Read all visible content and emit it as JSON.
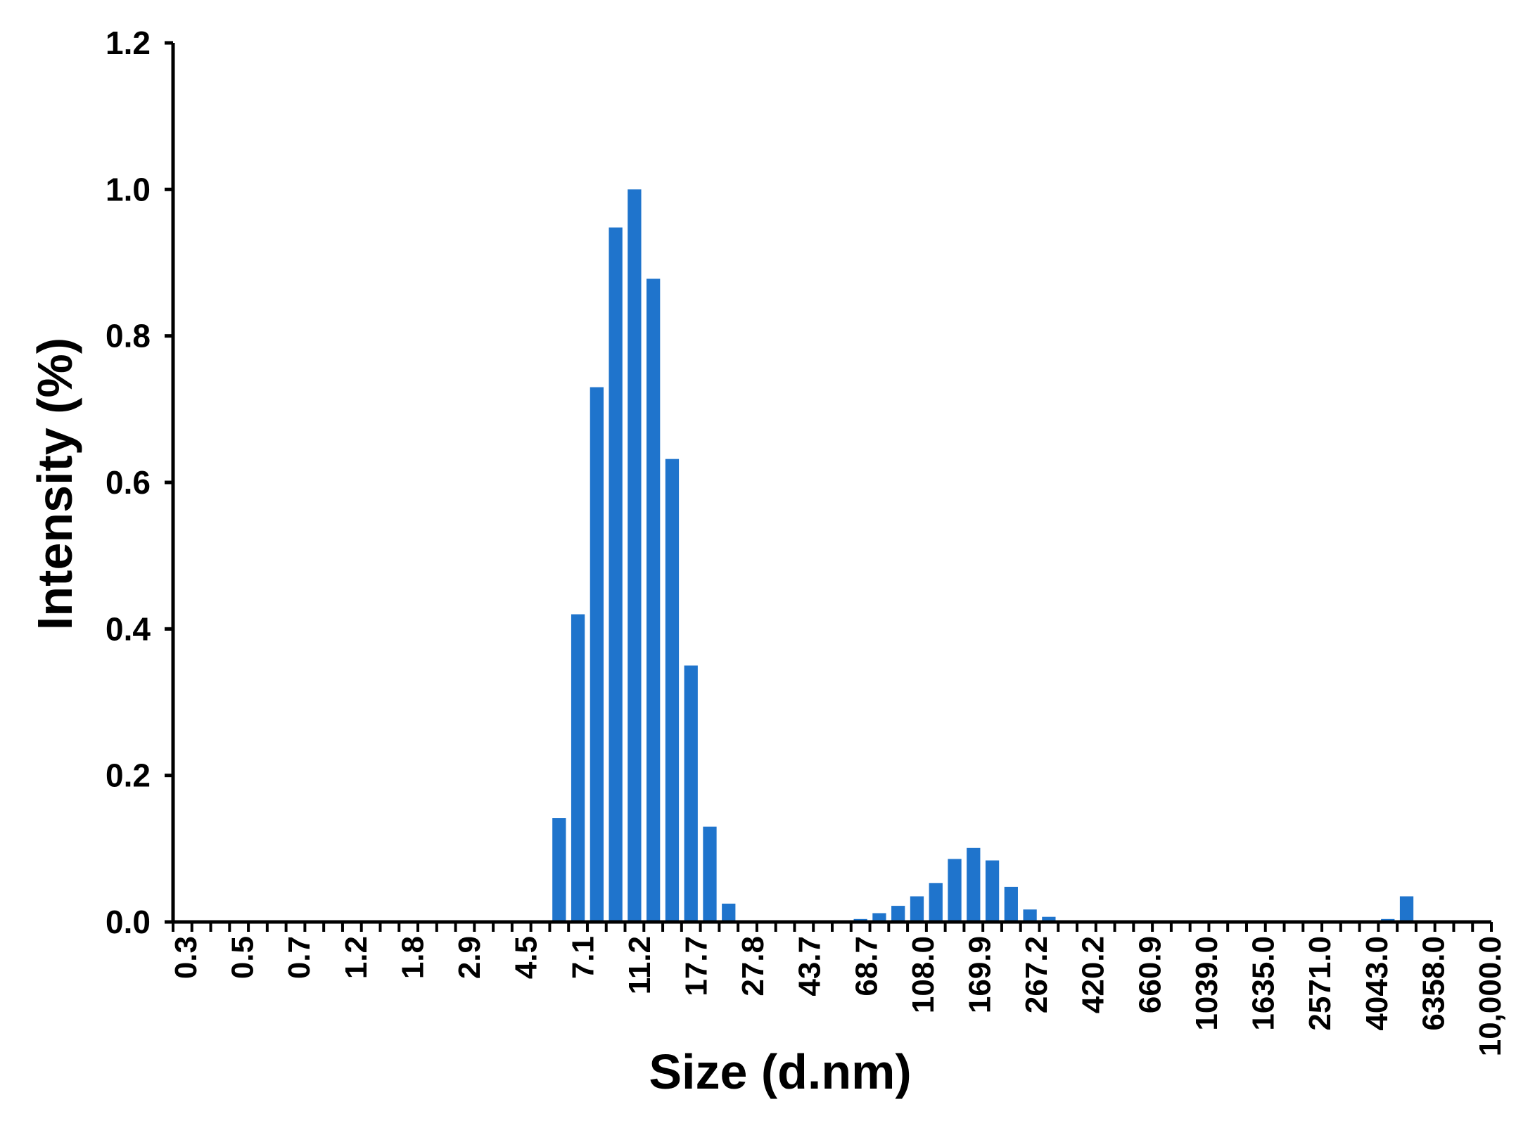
{
  "chart_data": {
    "type": "bar",
    "xlabel": "Size (d.nm)",
    "ylabel": "Intensity (%)",
    "ylim": [
      0,
      1.2
    ],
    "y_ticks": [
      "0.0",
      "0.2",
      "0.4",
      "0.6",
      "0.8",
      "1.0",
      "1.2"
    ],
    "x_tick_labels": [
      "0.3",
      "0.5",
      "0.7",
      "1.2",
      "1.8",
      "2.9",
      "4.5",
      "7.1",
      "11.2",
      "17.7",
      "27.8",
      "43.7",
      "68.7",
      "108.0",
      "169.9",
      "267.2",
      "420.2",
      "660.9",
      "1039.0",
      "1635.0",
      "2571.0",
      "4043.0",
      "6358.0",
      "10,000.0"
    ],
    "bin_count": 70,
    "values": [
      0,
      0,
      0,
      0,
      0,
      0,
      0,
      0,
      0,
      0,
      0,
      0,
      0,
      0,
      0,
      0,
      0,
      0,
      0,
      0,
      0.142,
      0.42,
      0.73,
      0.948,
      1.0,
      0.878,
      0.632,
      0.35,
      0.13,
      0.025,
      0,
      0,
      0,
      0,
      0,
      0,
      0.004,
      0.012,
      0.022,
      0.035,
      0.053,
      0.086,
      0.101,
      0.084,
      0.048,
      0.017,
      0.007,
      0,
      0,
      0,
      0,
      0,
      0,
      0,
      0,
      0,
      0,
      0,
      0,
      0,
      0,
      0,
      0,
      0,
      0.004,
      0.035,
      0,
      0,
      0,
      0
    ],
    "grid": false,
    "legend": "none",
    "bar_color": "#1f74cc"
  }
}
